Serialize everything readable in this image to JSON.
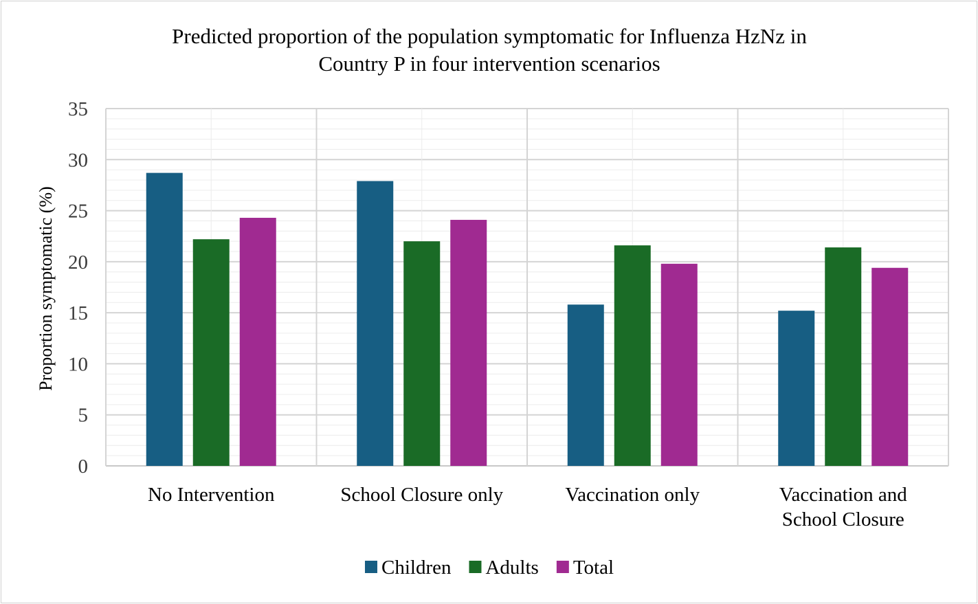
{
  "chart_data": {
    "type": "bar",
    "title_lines": [
      "Predicted proportion of the population symptomatic for Influenza HzNz in",
      "Country P in four intervention scenarios"
    ],
    "xlabel": "",
    "ylabel": "Proportion symptomatic (%)",
    "ylim": [
      0,
      35
    ],
    "yticks": [
      0,
      5,
      10,
      15,
      20,
      25,
      30,
      35
    ],
    "grid": true,
    "legend_position": "bottom",
    "categories": [
      [
        "No Intervention"
      ],
      [
        "School Closure only"
      ],
      [
        "Vaccination only"
      ],
      [
        "Vaccination and",
        "School Closure"
      ]
    ],
    "series": [
      {
        "name": "Children",
        "color": "#175e83",
        "values": [
          28.7,
          27.9,
          15.8,
          15.2
        ]
      },
      {
        "name": "Adults",
        "color": "#1a6b26",
        "values": [
          22.2,
          22.0,
          21.6,
          21.4
        ]
      },
      {
        "name": "Total",
        "color": "#a02a91",
        "values": [
          24.3,
          24.1,
          19.8,
          19.4
        ]
      }
    ]
  }
}
